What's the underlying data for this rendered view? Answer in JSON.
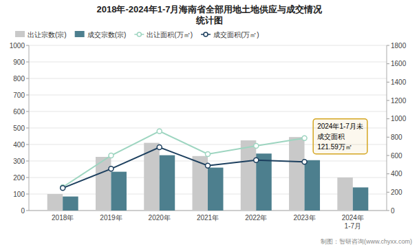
{
  "chart_data": {
    "type": "bar",
    "title": "2018年-2024年1-7月海南省全部用地土地供应与成交情况\n统计图",
    "categories": [
      "2018年",
      "2019年",
      "2020年",
      "2021年",
      "2022年",
      "2023年",
      "2024年\n1-7月"
    ],
    "series": [
      {
        "name": "出让宗数(宗)",
        "type": "bar",
        "color": "#c9c9c9",
        "values": [
          100,
          325,
          410,
          330,
          425,
          445,
          200
        ]
      },
      {
        "name": "成交宗数(宗)",
        "type": "bar",
        "color": "#4d7f8e",
        "values": [
          85,
          235,
          335,
          260,
          345,
          305,
          140
        ]
      },
      {
        "name": "出让面积(万㎡)",
        "type": "line",
        "axis": "y2",
        "marker": "circle",
        "color": "#9dd5c0",
        "values": [
          255,
          600,
          865,
          615,
          705,
          790,
          null
        ]
      },
      {
        "name": "成交面积(万㎡)",
        "type": "line",
        "axis": "y2",
        "marker": "circle",
        "color": "#1c3f5e",
        "values": [
          245,
          455,
          690,
          490,
          550,
          530,
          null
        ]
      }
    ],
    "ylim": [
      0,
      1000
    ],
    "yticks": [
      0,
      100,
      200,
      300,
      400,
      500,
      600,
      700,
      800,
      900,
      1000
    ],
    "y2lim": [
      0,
      1800
    ],
    "y2ticks": [
      0,
      200,
      400,
      600,
      800,
      1000,
      1200,
      1400,
      1600,
      1800
    ],
    "grid": true,
    "legend": "top",
    "annotations": [
      {
        "text": "2024年1-7月未\n成交面积\n121.59万㎡",
        "color": "#d4a520"
      }
    ],
    "footer": "制图：智研咨询(www.chyxx.com)"
  }
}
